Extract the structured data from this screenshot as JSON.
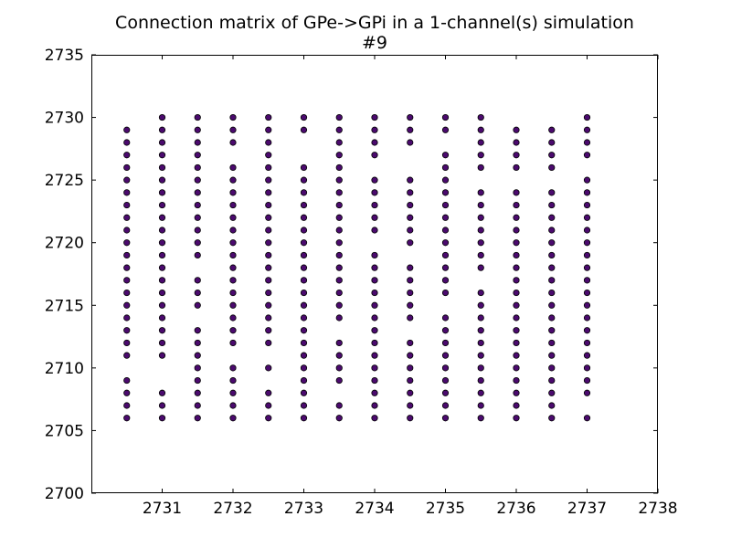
{
  "chart_data": {
    "type": "scatter",
    "title": "Connection matrix of GPe->GPi in a 1-channel(s) simulation",
    "subtitle": "#9",
    "xlabel": "",
    "ylabel": "",
    "xlim": [
      2730,
      2738
    ],
    "ylim": [
      2700,
      2735
    ],
    "x_ticks": [
      2731,
      2732,
      2733,
      2734,
      2735,
      2736,
      2737,
      2738
    ],
    "y_ticks": [
      2700,
      2705,
      2710,
      2715,
      2720,
      2725,
      2730,
      2735
    ],
    "grid": false,
    "marker_color": "#4b0a6e",
    "columns": [
      {
        "x": 2730.5,
        "y": [
          2706,
          2707,
          2708,
          2709,
          2711,
          2712,
          2713,
          2714,
          2715,
          2716,
          2717,
          2718,
          2719,
          2720,
          2721,
          2722,
          2723,
          2724,
          2725,
          2726,
          2727,
          2728,
          2729
        ]
      },
      {
        "x": 2731.0,
        "y": [
          2706,
          2707,
          2708,
          2711,
          2712,
          2713,
          2714,
          2715,
          2716,
          2717,
          2718,
          2719,
          2720,
          2721,
          2722,
          2723,
          2724,
          2725,
          2726,
          2727,
          2728,
          2729,
          2730
        ]
      },
      {
        "x": 2731.5,
        "y": [
          2706,
          2707,
          2708,
          2709,
          2710,
          2711,
          2712,
          2713,
          2715,
          2716,
          2717,
          2719,
          2720,
          2721,
          2722,
          2723,
          2724,
          2725,
          2726,
          2727,
          2728,
          2729,
          2730
        ]
      },
      {
        "x": 2732.0,
        "y": [
          2706,
          2707,
          2708,
          2709,
          2710,
          2712,
          2713,
          2714,
          2715,
          2716,
          2717,
          2718,
          2719,
          2720,
          2721,
          2722,
          2723,
          2724,
          2725,
          2726,
          2728,
          2729,
          2730
        ]
      },
      {
        "x": 2732.5,
        "y": [
          2706,
          2707,
          2708,
          2710,
          2712,
          2713,
          2714,
          2715,
          2716,
          2717,
          2718,
          2719,
          2720,
          2721,
          2722,
          2723,
          2724,
          2725,
          2726,
          2727,
          2728,
          2729,
          2730
        ]
      },
      {
        "x": 2733.0,
        "y": [
          2706,
          2707,
          2708,
          2709,
          2710,
          2711,
          2712,
          2713,
          2714,
          2715,
          2716,
          2717,
          2718,
          2719,
          2720,
          2721,
          2722,
          2723,
          2724,
          2725,
          2726,
          2729,
          2730
        ]
      },
      {
        "x": 2733.5,
        "y": [
          2706,
          2707,
          2709,
          2710,
          2711,
          2712,
          2714,
          2715,
          2716,
          2717,
          2718,
          2719,
          2720,
          2721,
          2722,
          2723,
          2724,
          2725,
          2726,
          2727,
          2728,
          2729,
          2730
        ]
      },
      {
        "x": 2734.0,
        "y": [
          2706,
          2707,
          2708,
          2709,
          2710,
          2711,
          2712,
          2713,
          2714,
          2715,
          2716,
          2717,
          2718,
          2719,
          2721,
          2722,
          2723,
          2724,
          2725,
          2727,
          2728,
          2729,
          2730
        ]
      },
      {
        "x": 2734.5,
        "y": [
          2706,
          2707,
          2708,
          2709,
          2710,
          2711,
          2712,
          2714,
          2715,
          2716,
          2717,
          2718,
          2720,
          2721,
          2722,
          2723,
          2724,
          2725,
          2728,
          2729,
          2730
        ]
      },
      {
        "x": 2735.0,
        "y": [
          2706,
          2707,
          2708,
          2709,
          2710,
          2711,
          2712,
          2713,
          2714,
          2716,
          2717,
          2718,
          2719,
          2720,
          2721,
          2722,
          2723,
          2724,
          2725,
          2726,
          2727,
          2729,
          2730
        ]
      },
      {
        "x": 2735.5,
        "y": [
          2706,
          2707,
          2708,
          2709,
          2710,
          2711,
          2712,
          2713,
          2714,
          2715,
          2716,
          2718,
          2719,
          2720,
          2721,
          2722,
          2723,
          2724,
          2726,
          2727,
          2728,
          2729,
          2730
        ]
      },
      {
        "x": 2736.0,
        "y": [
          2706,
          2707,
          2708,
          2709,
          2710,
          2711,
          2712,
          2713,
          2714,
          2715,
          2716,
          2717,
          2718,
          2719,
          2720,
          2721,
          2722,
          2723,
          2724,
          2726,
          2727,
          2728,
          2729
        ]
      },
      {
        "x": 2736.5,
        "y": [
          2706,
          2707,
          2708,
          2709,
          2710,
          2711,
          2712,
          2713,
          2714,
          2715,
          2716,
          2717,
          2718,
          2719,
          2720,
          2721,
          2722,
          2723,
          2724,
          2726,
          2727,
          2728,
          2729
        ]
      },
      {
        "x": 2737.0,
        "y": [
          2706,
          2708,
          2709,
          2710,
          2711,
          2712,
          2713,
          2714,
          2715,
          2716,
          2717,
          2718,
          2719,
          2720,
          2721,
          2722,
          2723,
          2724,
          2725,
          2727,
          2728,
          2729,
          2730
        ]
      }
    ]
  }
}
